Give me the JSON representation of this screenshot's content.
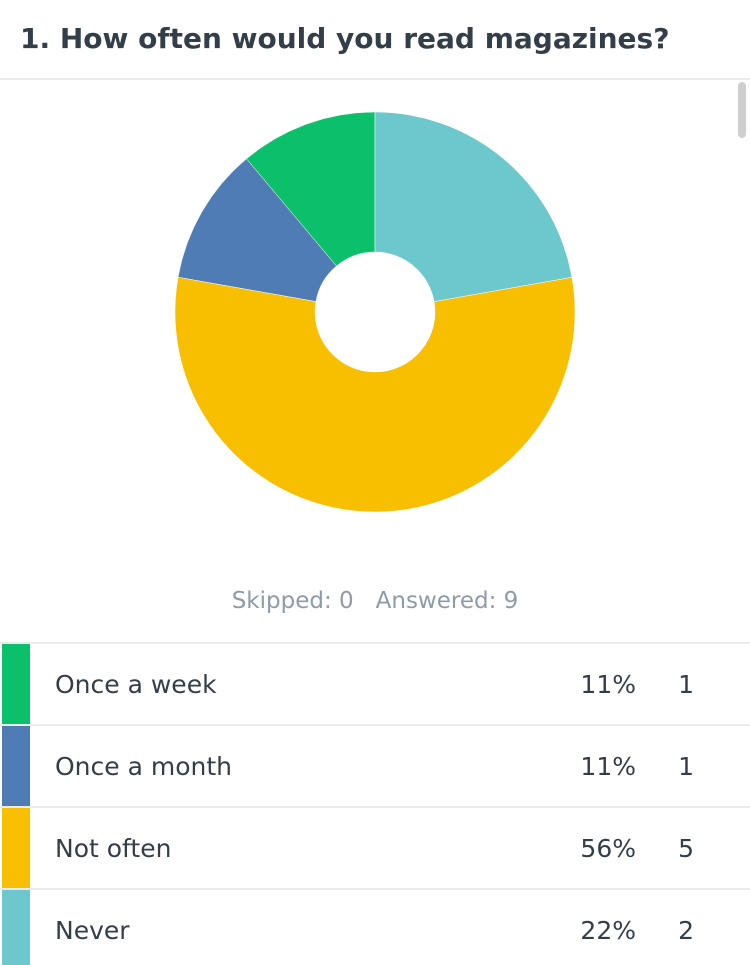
{
  "question": {
    "title": "1. How often would you read magazines?"
  },
  "summary": {
    "skipped_label": "Skipped: 0",
    "answered_label": "Answered: 9"
  },
  "chart_data": {
    "type": "pie",
    "style": "donut",
    "title": "",
    "categories": [
      "Once a week",
      "Once a month",
      "Not often",
      "Never"
    ],
    "values": [
      1,
      1,
      5,
      2
    ],
    "percent_labels": [
      "11%",
      "11%",
      "56%",
      "22%"
    ],
    "colors": [
      "#0bbf6b",
      "#507cb6",
      "#f8be00",
      "#6dc8cd"
    ],
    "start": "12 o'clock",
    "direction": "counter-clockwise",
    "legend": "table-below"
  }
}
